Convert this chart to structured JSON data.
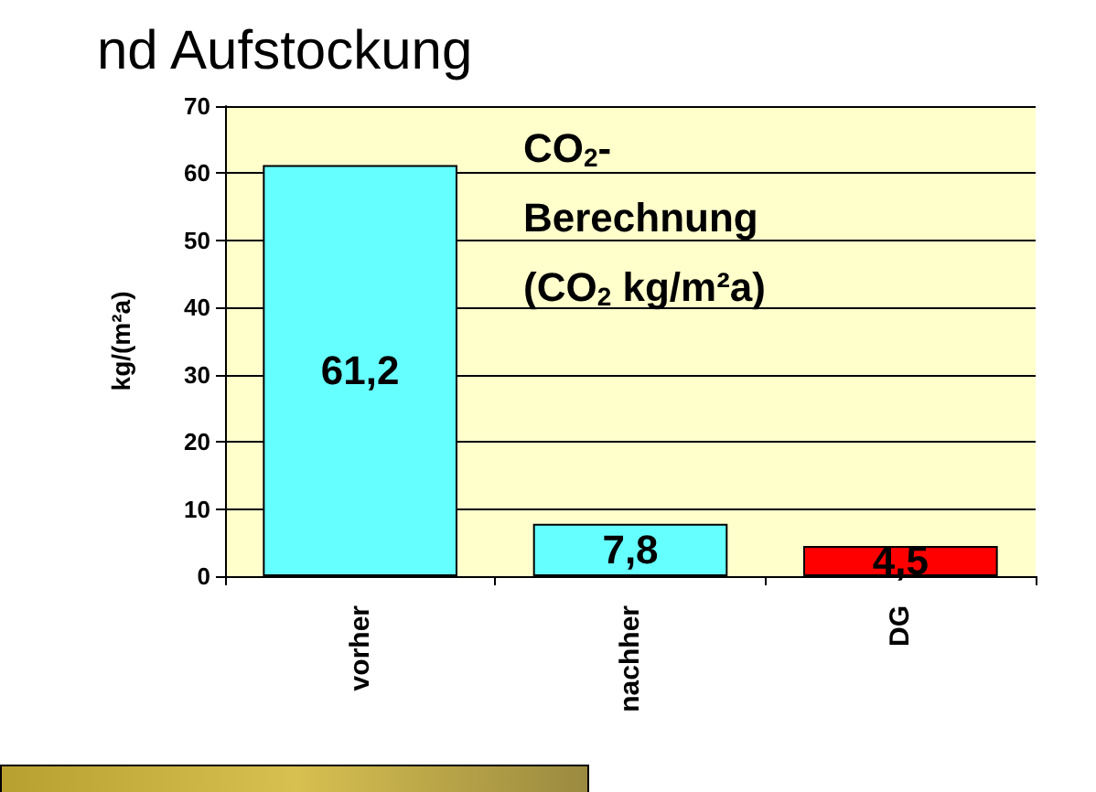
{
  "chart_data": {
    "type": "bar",
    "title": "nd Aufstockung",
    "ylabel": "kg/(m²a)",
    "categories": [
      "vorher",
      "nachher",
      "DG"
    ],
    "values": [
      61.2,
      7.8,
      4.5
    ],
    "colors": [
      "#66ffff",
      "#66ffff",
      "#ff0000"
    ],
    "value_labels": [
      "61,2",
      "7,8",
      "4,5"
    ],
    "ylim": [
      0,
      70
    ],
    "yticks": [
      0,
      10,
      20,
      30,
      40,
      50,
      60,
      70
    ],
    "grid": "y",
    "annotations": [
      "CO$_{2}$-",
      "Berechnung",
      "(CO$_{2}$ kg/m²a)"
    ]
  }
}
